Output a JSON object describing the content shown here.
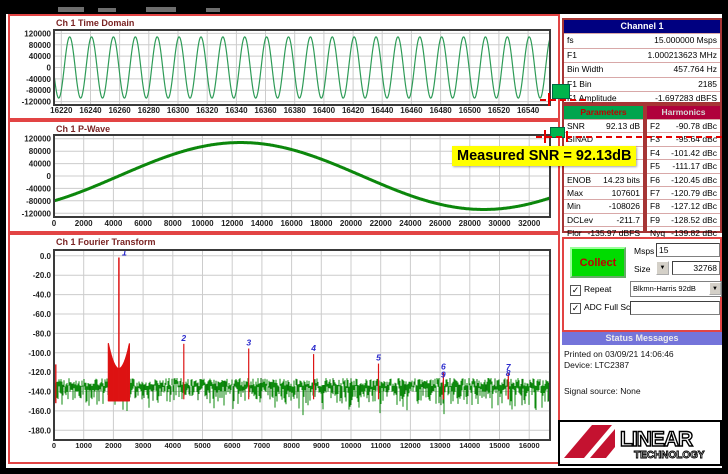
{
  "chart_data": [
    {
      "type": "line",
      "title": "Ch 1 Time Domain",
      "x_domain": [
        16215,
        16555
      ],
      "y_domain": [
        -132000,
        132000
      ],
      "x_ticks": [
        "16220",
        "16240",
        "16260",
        "16280",
        "16300",
        "16320",
        "16340",
        "16360",
        "16380",
        "16400",
        "16420",
        "16440",
        "16460",
        "16480",
        "16500",
        "16520",
        "16540"
      ],
      "y_ticks": [
        "120000",
        "80000",
        "40000",
        "0",
        "-40000",
        "-80000",
        "-120000"
      ],
      "signal": {
        "kind": "sine",
        "amplitude": 107800,
        "period": 15,
        "phase_ref": 16222
      },
      "color": "#2e9b57",
      "line_width": 1.2
    },
    {
      "type": "line",
      "title": "Ch 1 P-Wave",
      "x_domain": [
        0,
        33400
      ],
      "y_domain": [
        -132000,
        132000
      ],
      "x_ticks": [
        "0",
        "2000",
        "4000",
        "6000",
        "8000",
        "10000",
        "12000",
        "14000",
        "16000",
        "18000",
        "20000",
        "22000",
        "24000",
        "26000",
        "28000",
        "30000",
        "32000"
      ],
      "y_ticks": [
        "120000",
        "80000",
        "40000",
        "0",
        "-40000",
        "-80000",
        "-120000"
      ],
      "signal": {
        "kind": "sine",
        "amplitude": 107800,
        "period": 32768,
        "phase_ref": 4365
      },
      "color": "#0c870c",
      "line_width": 3
    },
    {
      "type": "fft",
      "title": "Ch 1 Fourier Transform",
      "x_domain": [
        0,
        16700
      ],
      "y_domain": [
        -190,
        6
      ],
      "x_ticks": [
        "0",
        "1000",
        "2000",
        "3000",
        "4000",
        "5000",
        "6000",
        "7000",
        "8000",
        "9000",
        "10000",
        "11000",
        "12000",
        "13000",
        "14000",
        "15000",
        "16000"
      ],
      "y_ticks": [
        "0.0",
        "-20.0",
        "-40.0",
        "-60.0",
        "-80.0",
        "-100.0",
        "-120.0",
        "-140.0",
        "-160.0",
        "-180.0"
      ],
      "noise_floor_dB": -140,
      "fundamental": {
        "label": "1",
        "bin": 2185,
        "dB": -1.7
      },
      "skirt": {
        "from": 1830,
        "to": 2540,
        "top_dB": -116,
        "base_dB": -150
      },
      "dc_spike": {
        "bin": 60,
        "dB": -112
      },
      "harmonics": [
        {
          "label": "2",
          "bin": 4370,
          "dB": -90.78
        },
        {
          "label": "3",
          "bin": 6555,
          "dB": -95.64
        },
        {
          "label": "4",
          "bin": 8740,
          "dB": -101.42
        },
        {
          "label": "5",
          "bin": 10925,
          "dB": -111.17
        },
        {
          "label": "6",
          "bin": 13110,
          "dB": -120.45
        },
        {
          "label": "7",
          "bin": 15295,
          "dB": -120.79
        },
        {
          "label": "8",
          "bin": 15288,
          "dB": -127.12
        },
        {
          "label": "9",
          "bin": 13103,
          "dB": -128.52
        }
      ],
      "noise_color": "#0d8a0d",
      "spike_color": "#dd1414",
      "marker_label_color": "#2a2acc"
    }
  ],
  "channel_info": {
    "header": "Channel 1",
    "rows": [
      [
        "fs",
        "15.000000 Msps"
      ],
      [
        "F1",
        "1.000213623 MHz"
      ],
      [
        "Bin Width",
        "457.764 Hz"
      ],
      [
        "F1 Bin",
        "2185"
      ],
      [
        "F1 Amplitude",
        "-1.697283 dBFS"
      ]
    ]
  },
  "parameters": {
    "header": "Parameters",
    "rows": [
      [
        "SNR",
        "92.13 dB"
      ],
      [
        "SINAD",
        ""
      ],
      [
        "",
        ""
      ],
      [
        "",
        ""
      ],
      [
        "ENOB",
        "14.23 bits"
      ],
      [
        "Max",
        "107601"
      ],
      [
        "Min",
        "-108026"
      ],
      [
        "DCLev",
        "-211.7"
      ],
      [
        "Flor",
        "-135.97 dBFS"
      ]
    ]
  },
  "harmonics_table": {
    "header": "Harmonics",
    "rows": [
      [
        "F2",
        "-90.78 dBc"
      ],
      [
        "F3",
        "-95.64 dBc"
      ],
      [
        "F4",
        "-101.42 dBc"
      ],
      [
        "F5",
        "-111.17 dBc"
      ],
      [
        "F6",
        "-120.45 dBc"
      ],
      [
        "F7",
        "-120.79 dBc"
      ],
      [
        "F8",
        "-127.12 dBc"
      ],
      [
        "F9",
        "-128.52 dBc"
      ],
      [
        "Nyq",
        "-139.82 dBc"
      ]
    ]
  },
  "annotation": {
    "text": "Measured SNR = 92.13dB"
  },
  "controls": {
    "collect": "Collect",
    "msps_label": "Msps",
    "msps_value": "15",
    "size_label": "Size",
    "size_value": "32768",
    "repeat_label": "Repeat",
    "window_value": "Blkmn-Harris 92dB",
    "adc_label": "ADC Full Scale",
    "dropdown_glyph": "▼",
    "check_glyph": "✓"
  },
  "status": {
    "header": "Status Messages",
    "lines": [
      "Printed on 03/09/21 14:06:46",
      "Device: LTC2387",
      "Signal source: None"
    ]
  },
  "logo": {
    "line1": "LINEAR",
    "line2": "TECHNOLOGY",
    "brand_color": "#c41230"
  }
}
